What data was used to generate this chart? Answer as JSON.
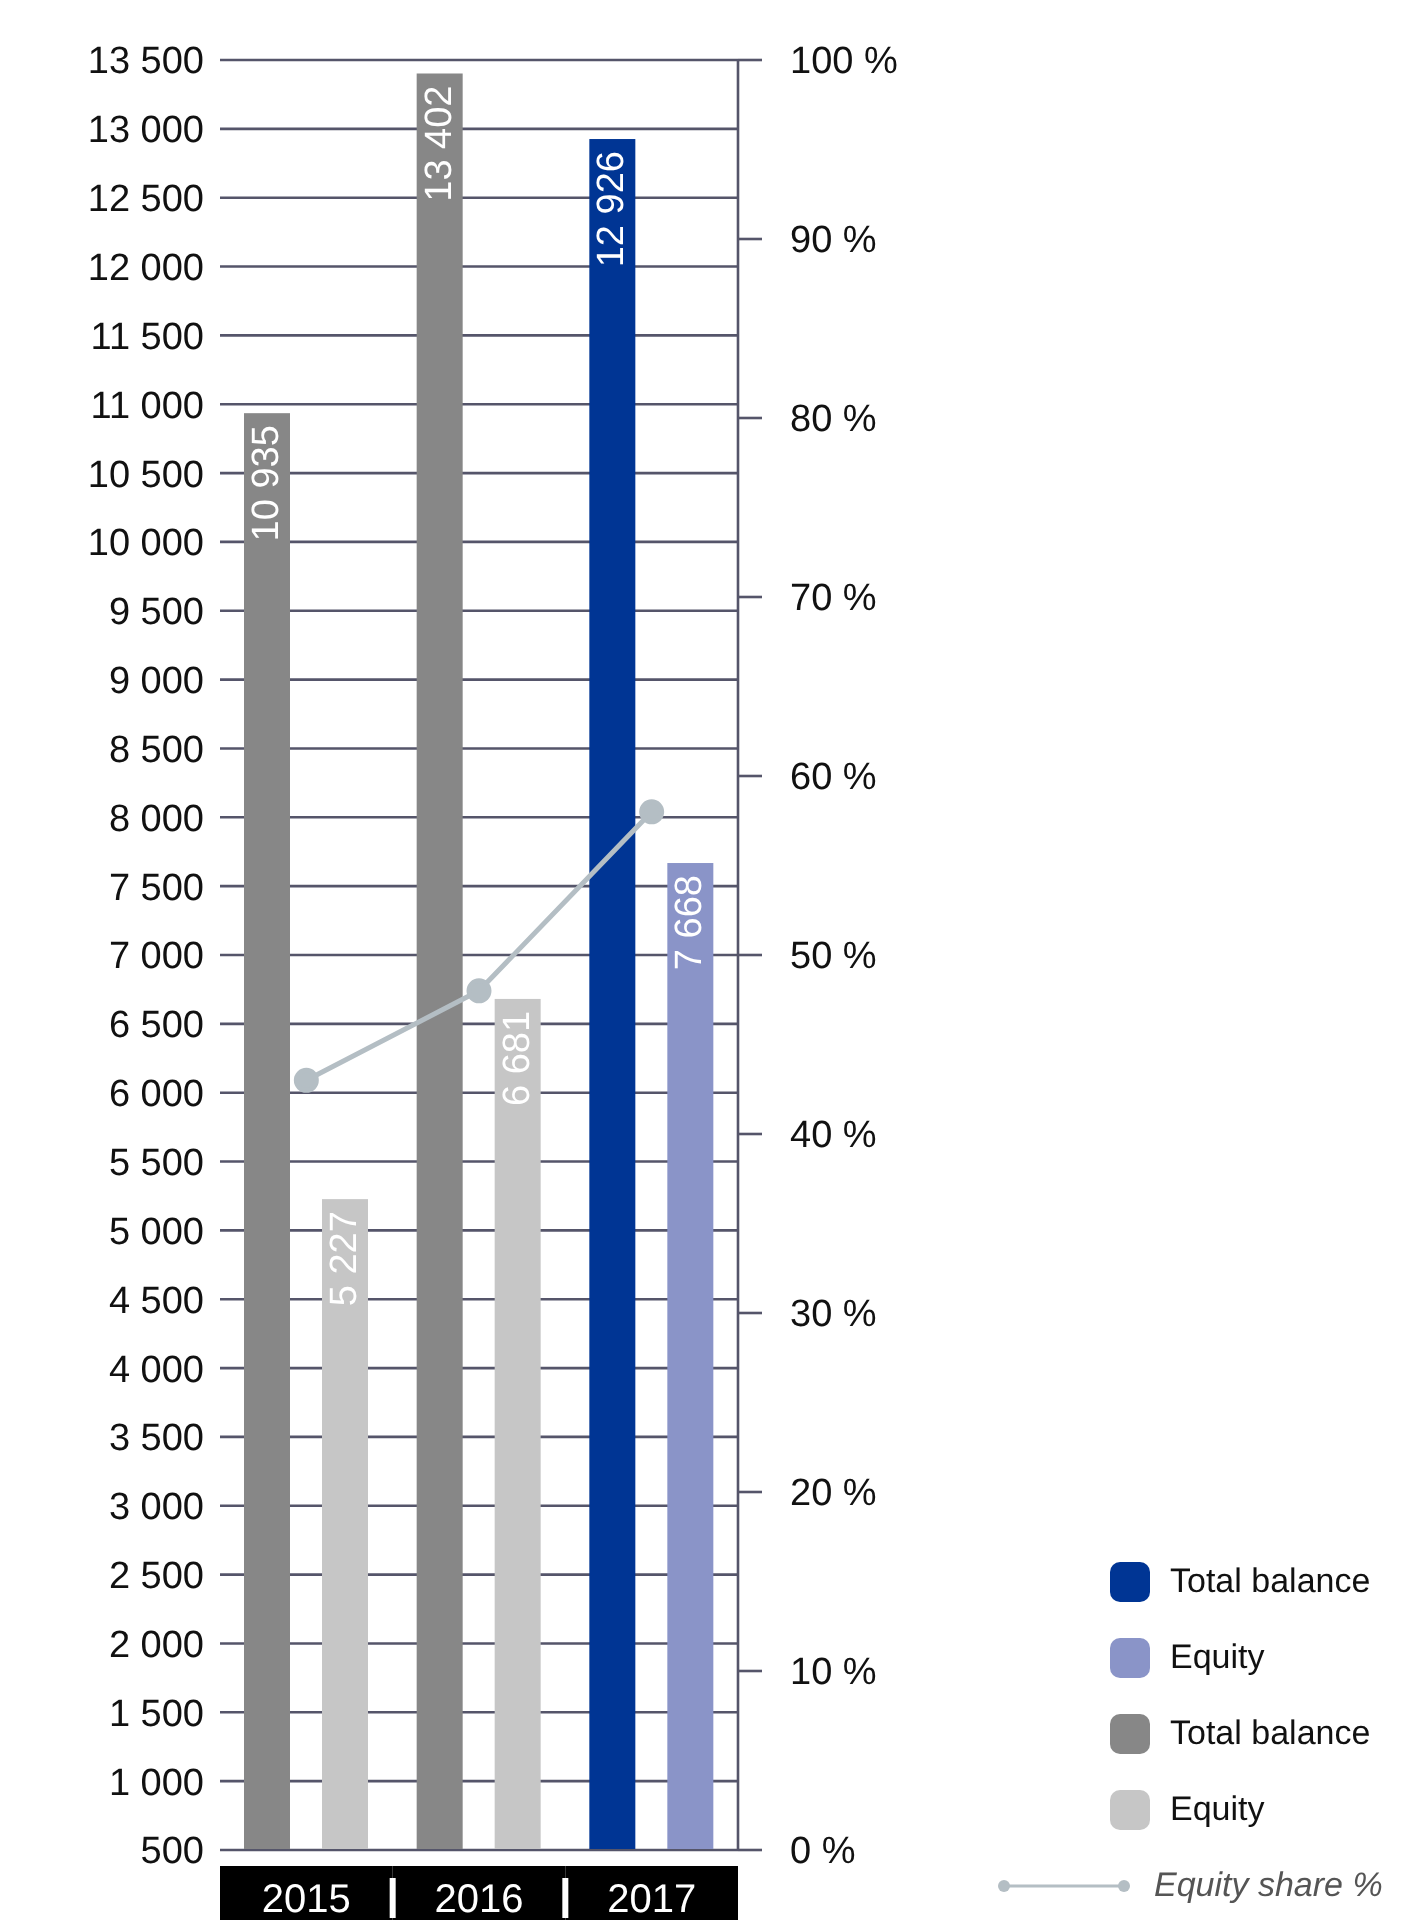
{
  "chart_data": {
    "type": "bar",
    "categories": [
      "2015",
      "2016",
      "2017"
    ],
    "series": [
      {
        "name": "Total balance",
        "color": "#003594",
        "values": [
          null,
          null,
          12926
        ],
        "value_labels": [
          null,
          null,
          "12 926"
        ]
      },
      {
        "name": "Equity",
        "color": "#8a94c8",
        "values": [
          null,
          null,
          7668
        ],
        "value_labels": [
          null,
          null,
          "7 668"
        ]
      },
      {
        "name": "Total balance",
        "color": "#878787",
        "values": [
          10935,
          13402,
          null
        ],
        "value_labels": [
          "10 935",
          "13 402",
          null
        ]
      },
      {
        "name": "Equity",
        "color": "#c6c6c6",
        "values": [
          5227,
          6681,
          null
        ],
        "value_labels": [
          "5 227",
          "6 681",
          null
        ]
      },
      {
        "name": "Equity share %",
        "type": "line",
        "axis": "y2",
        "color": "#b4bec4",
        "values": [
          43,
          48,
          58
        ]
      }
    ],
    "ylim": [
      500,
      13500
    ],
    "yticks": [
      {
        "value": 500,
        "label": "500"
      },
      {
        "value": 1000,
        "label": "1 000"
      },
      {
        "value": 1500,
        "label": "1 500"
      },
      {
        "value": 2000,
        "label": "2 000"
      },
      {
        "value": 2500,
        "label": "2 500"
      },
      {
        "value": 3000,
        "label": "3 000"
      },
      {
        "value": 3500,
        "label": "3 500"
      },
      {
        "value": 4000,
        "label": "4 000"
      },
      {
        "value": 4500,
        "label": "4 500"
      },
      {
        "value": 5000,
        "label": "5 000"
      },
      {
        "value": 5500,
        "label": "5 500"
      },
      {
        "value": 6000,
        "label": "6 000"
      },
      {
        "value": 6500,
        "label": "6 500"
      },
      {
        "value": 7000,
        "label": "7 000"
      },
      {
        "value": 7500,
        "label": "7 500"
      },
      {
        "value": 8000,
        "label": "8 000"
      },
      {
        "value": 8500,
        "label": "8 500"
      },
      {
        "value": 9000,
        "label": "9 000"
      },
      {
        "value": 9500,
        "label": "9 500"
      },
      {
        "value": 10000,
        "label": "10 000"
      },
      {
        "value": 10500,
        "label": "10 500"
      },
      {
        "value": 11000,
        "label": "11 000"
      },
      {
        "value": 11500,
        "label": "11 500"
      },
      {
        "value": 12000,
        "label": "12 000"
      },
      {
        "value": 12500,
        "label": "12 500"
      },
      {
        "value": 13000,
        "label": "13 000"
      },
      {
        "value": 13500,
        "label": "13 500"
      }
    ],
    "y2lim": [
      0,
      100
    ],
    "y2ticks": [
      {
        "value": 0,
        "label": "0 %"
      },
      {
        "value": 10,
        "label": "10 %"
      },
      {
        "value": 20,
        "label": "20 %"
      },
      {
        "value": 30,
        "label": "30 %"
      },
      {
        "value": 40,
        "label": "40 %"
      },
      {
        "value": 50,
        "label": "50 %"
      },
      {
        "value": 60,
        "label": "60 %"
      },
      {
        "value": 70,
        "label": "70 %"
      },
      {
        "value": 80,
        "label": "80 %"
      },
      {
        "value": 90,
        "label": "90 %"
      },
      {
        "value": 100,
        "label": "100 %"
      }
    ],
    "grid": "y",
    "legend": "bottom right",
    "marker": "circle"
  }
}
